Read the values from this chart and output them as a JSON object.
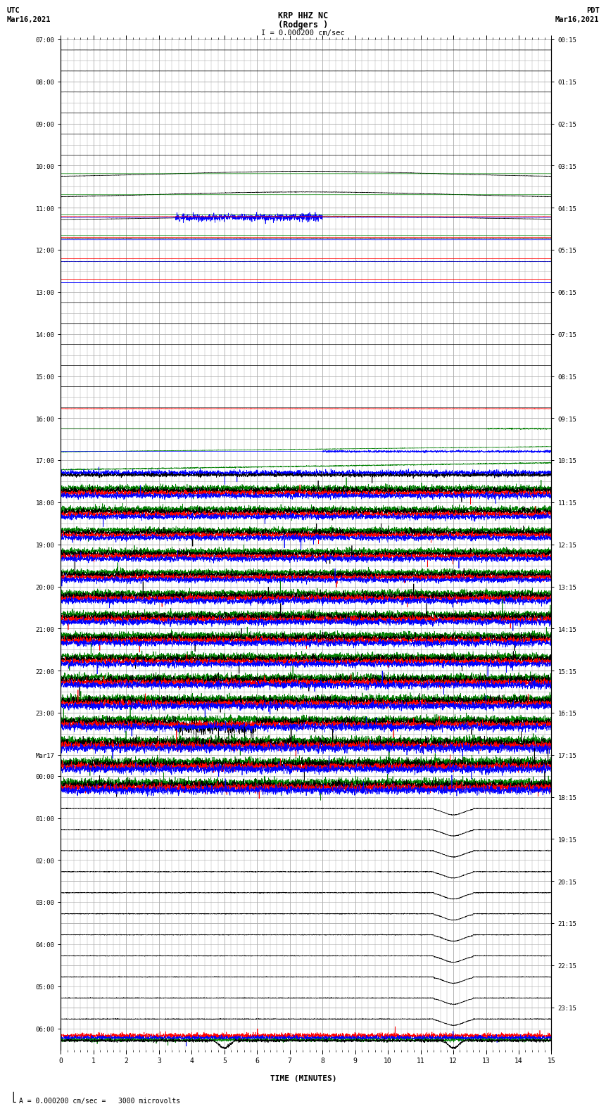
{
  "title_line1": "KRP HHZ NC",
  "title_line2": "(Rodgers )",
  "title_scale": "I = 0.000200 cm/sec",
  "utc_label": "UTC",
  "utc_date": "Mar16,2021",
  "pdt_label": "PDT",
  "pdt_date": "Mar16,2021",
  "bottom_label": "TIME (MINUTES)",
  "scale_label": "A = 0.000200 cm/sec =   3000 microvolts",
  "fig_width": 8.5,
  "fig_height": 16.13,
  "dpi": 100,
  "bg_color": "#ffffff",
  "grid_color": "#aaaaaa",
  "grid_color_major": "#888888",
  "left_times_utc": [
    "07:00",
    "",
    "08:00",
    "",
    "09:00",
    "",
    "10:00",
    "",
    "11:00",
    "",
    "12:00",
    "",
    "13:00",
    "",
    "14:00",
    "",
    "15:00",
    "",
    "16:00",
    "",
    "17:00",
    "",
    "18:00",
    "",
    "19:00",
    "",
    "20:00",
    "",
    "21:00",
    "",
    "22:00",
    "",
    "23:00",
    "",
    "Mar17",
    "00:00",
    "",
    "01:00",
    "",
    "02:00",
    "",
    "03:00",
    "",
    "04:00",
    "",
    "05:00",
    "",
    "06:00",
    ""
  ],
  "right_times_pdt": [
    "00:15",
    "",
    "01:15",
    "",
    "02:15",
    "",
    "03:15",
    "",
    "04:15",
    "",
    "05:15",
    "",
    "06:15",
    "",
    "07:15",
    "",
    "08:15",
    "",
    "09:15",
    "",
    "10:15",
    "",
    "11:15",
    "",
    "12:15",
    "",
    "13:15",
    "",
    "14:15",
    "",
    "15:15",
    "",
    "16:15",
    "",
    "17:15",
    "",
    "18:15",
    "",
    "19:15",
    "",
    "20:15",
    "",
    "21:15",
    "",
    "22:15",
    "",
    "23:15",
    ""
  ],
  "n_rows": 48,
  "colors": [
    "#000000",
    "#ff0000",
    "#0000ff",
    "#008000"
  ]
}
